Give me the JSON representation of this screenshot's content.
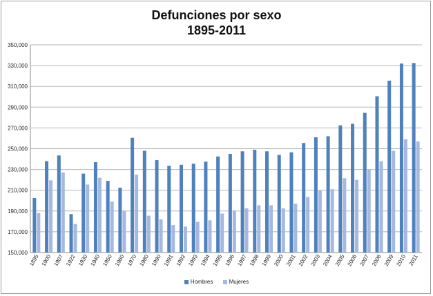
{
  "chart_data": {
    "type": "bar",
    "title": "Defunciones por sexo",
    "subtitle": "1895-2011",
    "categories": [
      "1895",
      "1900",
      "1907",
      "1922",
      "1930",
      "1940",
      "1950",
      "1960",
      "1970",
      "1980",
      "1990",
      "1991",
      "1992",
      "1993",
      "1994",
      "1995",
      "1996",
      "1997",
      "1998",
      "1999",
      "2000",
      "2001",
      "2002",
      "2003",
      "2004",
      "2005",
      "2006",
      "2007",
      "2008",
      "2009",
      "2010",
      "2011"
    ],
    "series": [
      {
        "name": "Hombres",
        "color": "#4f81bd",
        "values": [
          202500,
          238000,
          243500,
          187000,
          226000,
          237000,
          219000,
          212500,
          260500,
          248000,
          239000,
          233500,
          234500,
          235500,
          237500,
          242500,
          245000,
          247500,
          249000,
          247500,
          244000,
          246500,
          255500,
          261000,
          262000,
          272500,
          274000,
          284500,
          300500,
          315500,
          332000,
          332500
        ]
      },
      {
        "name": "Mujeres",
        "color": "#a5b9e0",
        "values": [
          188000,
          219500,
          227000,
          177500,
          215500,
          222000,
          199000,
          190000,
          225000,
          185500,
          182000,
          176500,
          175000,
          179500,
          181000,
          187500,
          190500,
          192500,
          195500,
          195500,
          192500,
          197000,
          203500,
          209500,
          211000,
          221500,
          220000,
          230000,
          238000,
          248000,
          259000,
          257000
        ]
      }
    ],
    "ylim": [
      150000,
      350000
    ],
    "yticks": [
      "150,000",
      "170,000",
      "190,000",
      "210,000",
      "230,000",
      "250,000",
      "270,000",
      "290,000",
      "310,000",
      "330,000",
      "350,000"
    ],
    "ytick_values": [
      150000,
      170000,
      190000,
      210000,
      230000,
      250000,
      270000,
      290000,
      310000,
      330000,
      350000
    ],
    "grid": true,
    "legend_position": "bottom"
  }
}
